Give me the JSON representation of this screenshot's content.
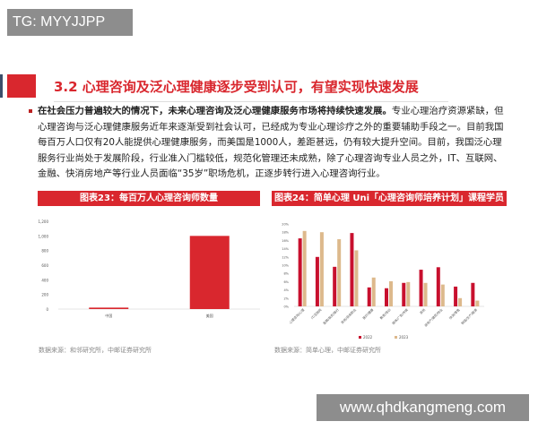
{
  "watermarks": {
    "top_left": "TG: MYYJJPP",
    "bottom_right": "www.qhdkangmeng.com"
  },
  "section": {
    "title": "3.2 心理咨询及泛心理健康逐步受到认可，有望实现快速发展"
  },
  "body": {
    "lead": "在社会压力普遍较大的情况下，未来心理咨询及泛心理健康服务市场将持续快速发展。",
    "text": "专业心理治疗资源紧缺，但心理咨询与泛心理健康服务近年来逐渐受到社会认可，已经成为专业心理诊疗之外的重要辅助手段之一。目前我国每百万人口仅有20人能提供心理健康服务，而美国是1000人，差距甚远，仍有较大提升空间。目前，我国泛心理服务行业尚处于发展阶段，行业准入门槛较低，规范化管理还未成熟，除了心理咨询专业人员之外，IT、互联网、金融、快消房地产等行业人员面临“35岁”职场危机，正逐步转行进入心理咨询行业。"
  },
  "colors": {
    "accent": "#d9272e",
    "series_2022": "#c8102e",
    "series_2023": "#ddb98c"
  },
  "chart_data": [
    {
      "type": "bar",
      "title": "图表23：每百万人心理咨询师数量",
      "categories": [
        "中国",
        "美国"
      ],
      "values": [
        20,
        1000
      ],
      "ylim": [
        0,
        1200
      ],
      "yticks": [
        "0",
        "200",
        "400",
        "600",
        "800",
        "1,000",
        "1,200"
      ],
      "grid": false,
      "source": "数据来源：和邻研究所，中邮证券研究所"
    },
    {
      "type": "bar",
      "title": "图表24：简单心理 Uni「心理咨询师培养计划」课程学员行业分布",
      "categories": [
        "心理咨询/心理",
        "IT/互联网",
        "金融/投资/银行",
        "其他/自由职业",
        "医疗/健康",
        "教育/培训",
        "媒体/广告/传媒",
        "其他",
        "房地产/建筑/物业",
        "快消/零售",
        "制造/生产/能源"
      ],
      "series": [
        {
          "name": "2022",
          "values": [
            16.5,
            12,
            9.6,
            17.8,
            4.6,
            4.4,
            5.7,
            8.9,
            9.5,
            4.8,
            5.7
          ]
        },
        {
          "name": "2023",
          "values": [
            18.3,
            18,
            16.3,
            13.6,
            7,
            6.1,
            5.9,
            5.7,
            5.3,
            2,
            1.4
          ]
        }
      ],
      "ylim": [
        0,
        20
      ],
      "yticks": [
        "0%",
        "2%",
        "4%",
        "6%",
        "8%",
        "10%",
        "12%",
        "14%",
        "16%",
        "18%",
        "20%"
      ],
      "legend": "bottom",
      "grid": false,
      "source": "数据来源：简单心理，中邮证券研究所"
    }
  ]
}
